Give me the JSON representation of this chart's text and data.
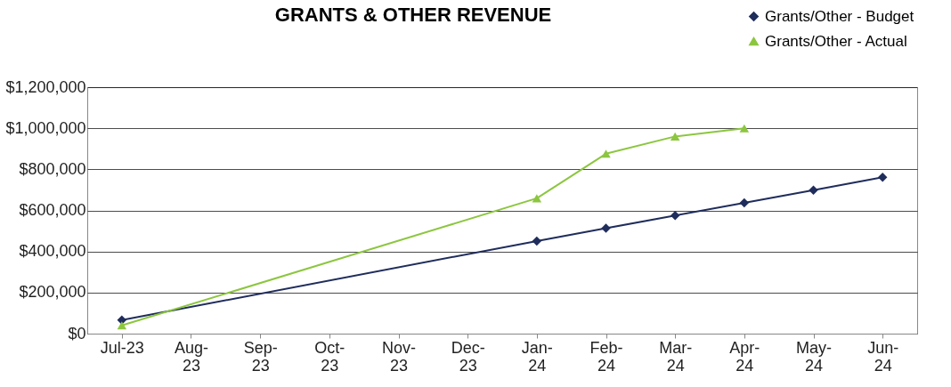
{
  "chart_data": {
    "type": "line",
    "title": "GRANTS & OTHER REVENUE",
    "categories": [
      "Jul-23",
      "Aug-23",
      "Sep-23",
      "Oct-23",
      "Nov-23",
      "Dec-23",
      "Jan-24",
      "Feb-24",
      "Mar-24",
      "Apr-24",
      "May-24",
      "Jun-24"
    ],
    "series": [
      {
        "name": "Grants/Other - Budget",
        "color": "#1f2d5c",
        "marker": "diamond",
        "values": [
          66000,
          null,
          null,
          null,
          null,
          null,
          451000,
          513000,
          575000,
          637000,
          699000,
          761000
        ]
      },
      {
        "name": "Grants/Other - Actual",
        "color": "#8cc63f",
        "marker": "triangle",
        "values": [
          40000,
          null,
          null,
          null,
          null,
          null,
          659000,
          876000,
          960000,
          1000000,
          null,
          null
        ]
      }
    ],
    "ylim": [
      0,
      1200000
    ],
    "yticks": [
      {
        "value": 0,
        "label": "$0"
      },
      {
        "value": 200000,
        "label": "$200,000"
      },
      {
        "value": 400000,
        "label": "$400,000"
      },
      {
        "value": 600000,
        "label": "$600,000"
      },
      {
        "value": 800000,
        "label": "$800,000"
      },
      {
        "value": 1000000,
        "label": "$1,000,000"
      },
      {
        "value": 1200000,
        "label": "$1,200,000"
      }
    ],
    "grid": "y",
    "legend": "top right"
  }
}
